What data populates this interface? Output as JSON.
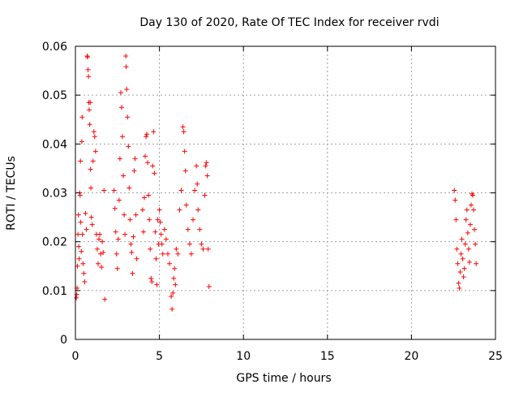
{
  "chart_data": {
    "type": "scatter",
    "title": "Day 130 of 2020, Rate Of TEC Index for receiver rvdi",
    "xlabel": "GPS time / hours",
    "ylabel": "ROTI / TECUs",
    "xlim": [
      0,
      25
    ],
    "ylim": [
      0,
      0.06
    ],
    "x_ticks": [
      0,
      5,
      10,
      15,
      20,
      25
    ],
    "y_ticks": [
      0,
      0.01,
      0.02,
      0.03,
      0.04,
      0.05,
      0.06
    ],
    "x_tick_labels": [
      "0",
      "5",
      "10",
      "15",
      "20",
      "25"
    ],
    "y_tick_labels": [
      "0",
      "0.01",
      "0.02",
      "0.03",
      "0.04",
      "0.05",
      "0.06"
    ],
    "grid": true,
    "marker": "plus",
    "color": "#ff0000",
    "series": [
      {
        "points": [
          [
            0.05,
            0.0085
          ],
          [
            0.08,
            0.0092
          ],
          [
            0.1,
            0.0105
          ],
          [
            0.12,
            0.015
          ],
          [
            0.15,
            0.0215
          ],
          [
            0.18,
            0.0255
          ],
          [
            0.2,
            0.019
          ],
          [
            0.22,
            0.0165
          ],
          [
            0.25,
            0.03
          ],
          [
            0.28,
            0.0295
          ],
          [
            0.3,
            0.0365
          ],
          [
            0.32,
            0.024
          ],
          [
            0.35,
            0.018
          ],
          [
            0.38,
            0.0405
          ],
          [
            0.4,
            0.0455
          ],
          [
            0.42,
            0.0215
          ],
          [
            0.45,
            0.0155
          ],
          [
            0.5,
            0.0135
          ],
          [
            0.55,
            0.0118
          ],
          [
            0.6,
            0.0258
          ],
          [
            0.65,
            0.0225
          ],
          [
            0.7,
            0.058
          ],
          [
            0.72,
            0.0578
          ],
          [
            0.75,
            0.0552
          ],
          [
            0.78,
            0.0538
          ],
          [
            0.8,
            0.0485
          ],
          [
            0.82,
            0.047
          ],
          [
            0.85,
            0.044
          ],
          [
            0.88,
            0.0485
          ],
          [
            0.9,
            0.0348
          ],
          [
            0.92,
            0.031
          ],
          [
            0.95,
            0.025
          ],
          [
            1.0,
            0.0235
          ],
          [
            1.05,
            0.0365
          ],
          [
            1.1,
            0.0425
          ],
          [
            1.15,
            0.0415
          ],
          [
            1.2,
            0.0385
          ],
          [
            1.25,
            0.0215
          ],
          [
            1.3,
            0.0185
          ],
          [
            1.35,
            0.0155
          ],
          [
            1.4,
            0.0205
          ],
          [
            1.45,
            0.0215
          ],
          [
            1.5,
            0.0175
          ],
          [
            1.55,
            0.0148
          ],
          [
            1.6,
            0.02
          ],
          [
            1.65,
            0.0178
          ],
          [
            1.7,
            0.0305
          ],
          [
            1.75,
            0.0082
          ],
          [
            2.3,
            0.0305
          ],
          [
            2.35,
            0.0268
          ],
          [
            2.4,
            0.022
          ],
          [
            2.45,
            0.0175
          ],
          [
            2.5,
            0.0145
          ],
          [
            2.55,
            0.0205
          ],
          [
            2.6,
            0.0285
          ],
          [
            2.65,
            0.037
          ],
          [
            2.7,
            0.0505
          ],
          [
            2.75,
            0.0475
          ],
          [
            2.8,
            0.0415
          ],
          [
            2.85,
            0.0335
          ],
          [
            2.9,
            0.0255
          ],
          [
            2.95,
            0.0215
          ],
          [
            3.0,
            0.058
          ],
          [
            3.02,
            0.0558
          ],
          [
            3.05,
            0.0512
          ],
          [
            3.1,
            0.0455
          ],
          [
            3.15,
            0.0395
          ],
          [
            3.2,
            0.031
          ],
          [
            3.25,
            0.0245
          ],
          [
            3.3,
            0.0195
          ],
          [
            3.35,
            0.0178
          ],
          [
            3.4,
            0.0135
          ],
          [
            3.45,
            0.021
          ],
          [
            3.5,
            0.0345
          ],
          [
            3.55,
            0.037
          ],
          [
            3.6,
            0.0255
          ],
          [
            3.65,
            0.0165
          ],
          [
            4.0,
            0.0265
          ],
          [
            4.05,
            0.022
          ],
          [
            4.1,
            0.029
          ],
          [
            4.15,
            0.0375
          ],
          [
            4.2,
            0.0415
          ],
          [
            4.25,
            0.042
          ],
          [
            4.3,
            0.0362
          ],
          [
            4.35,
            0.0295
          ],
          [
            4.4,
            0.0245
          ],
          [
            4.45,
            0.0185
          ],
          [
            4.5,
            0.0125
          ],
          [
            4.55,
            0.0118
          ],
          [
            4.6,
            0.0355
          ],
          [
            4.65,
            0.0425
          ],
          [
            4.7,
            0.034
          ],
          [
            4.75,
            0.022
          ],
          [
            4.8,
            0.0165
          ],
          [
            4.85,
            0.0112
          ],
          [
            4.9,
            0.0245
          ],
          [
            4.95,
            0.0195
          ],
          [
            5.0,
            0.0265
          ],
          [
            5.05,
            0.024
          ],
          [
            5.1,
            0.0215
          ],
          [
            5.15,
            0.0195
          ],
          [
            5.2,
            0.0175
          ],
          [
            5.3,
            0.0225
          ],
          [
            5.4,
            0.0205
          ],
          [
            5.5,
            0.0175
          ],
          [
            5.6,
            0.0155
          ],
          [
            5.7,
            0.0088
          ],
          [
            5.75,
            0.0062
          ],
          [
            5.8,
            0.0095
          ],
          [
            5.85,
            0.0125
          ],
          [
            5.9,
            0.0145
          ],
          [
            5.95,
            0.0112
          ],
          [
            6.0,
            0.0185
          ],
          [
            6.1,
            0.0175
          ],
          [
            6.2,
            0.0265
          ],
          [
            6.3,
            0.0305
          ],
          [
            6.4,
            0.0435
          ],
          [
            6.45,
            0.0425
          ],
          [
            6.5,
            0.0385
          ],
          [
            6.55,
            0.0345
          ],
          [
            6.6,
            0.0275
          ],
          [
            6.7,
            0.0225
          ],
          [
            6.8,
            0.0195
          ],
          [
            6.9,
            0.0175
          ],
          [
            7.0,
            0.0245
          ],
          [
            7.1,
            0.0305
          ],
          [
            7.2,
            0.0355
          ],
          [
            7.25,
            0.0318
          ],
          [
            7.3,
            0.0265
          ],
          [
            7.4,
            0.0225
          ],
          [
            7.5,
            0.0195
          ],
          [
            7.6,
            0.0185
          ],
          [
            7.7,
            0.0295
          ],
          [
            7.75,
            0.0355
          ],
          [
            7.8,
            0.0362
          ],
          [
            7.85,
            0.0335
          ],
          [
            7.9,
            0.0185
          ],
          [
            7.95,
            0.0108
          ],
          [
            22.55,
            0.0305
          ],
          [
            22.6,
            0.0285
          ],
          [
            22.65,
            0.0245
          ],
          [
            22.7,
            0.0185
          ],
          [
            22.75,
            0.0155
          ],
          [
            22.8,
            0.0115
          ],
          [
            22.85,
            0.0105
          ],
          [
            22.9,
            0.0138
          ],
          [
            22.95,
            0.0175
          ],
          [
            23.0,
            0.0205
          ],
          [
            23.05,
            0.0165
          ],
          [
            23.1,
            0.0128
          ],
          [
            23.15,
            0.0145
          ],
          [
            23.2,
            0.0195
          ],
          [
            23.25,
            0.0245
          ],
          [
            23.3,
            0.0265
          ],
          [
            23.35,
            0.0218
          ],
          [
            23.4,
            0.0185
          ],
          [
            23.45,
            0.0158
          ],
          [
            23.5,
            0.0235
          ],
          [
            23.55,
            0.0275
          ],
          [
            23.6,
            0.0298
          ],
          [
            23.65,
            0.0295
          ],
          [
            23.7,
            0.0265
          ],
          [
            23.75,
            0.0225
          ],
          [
            23.8,
            0.0195
          ],
          [
            23.85,
            0.0155
          ]
        ]
      }
    ]
  }
}
